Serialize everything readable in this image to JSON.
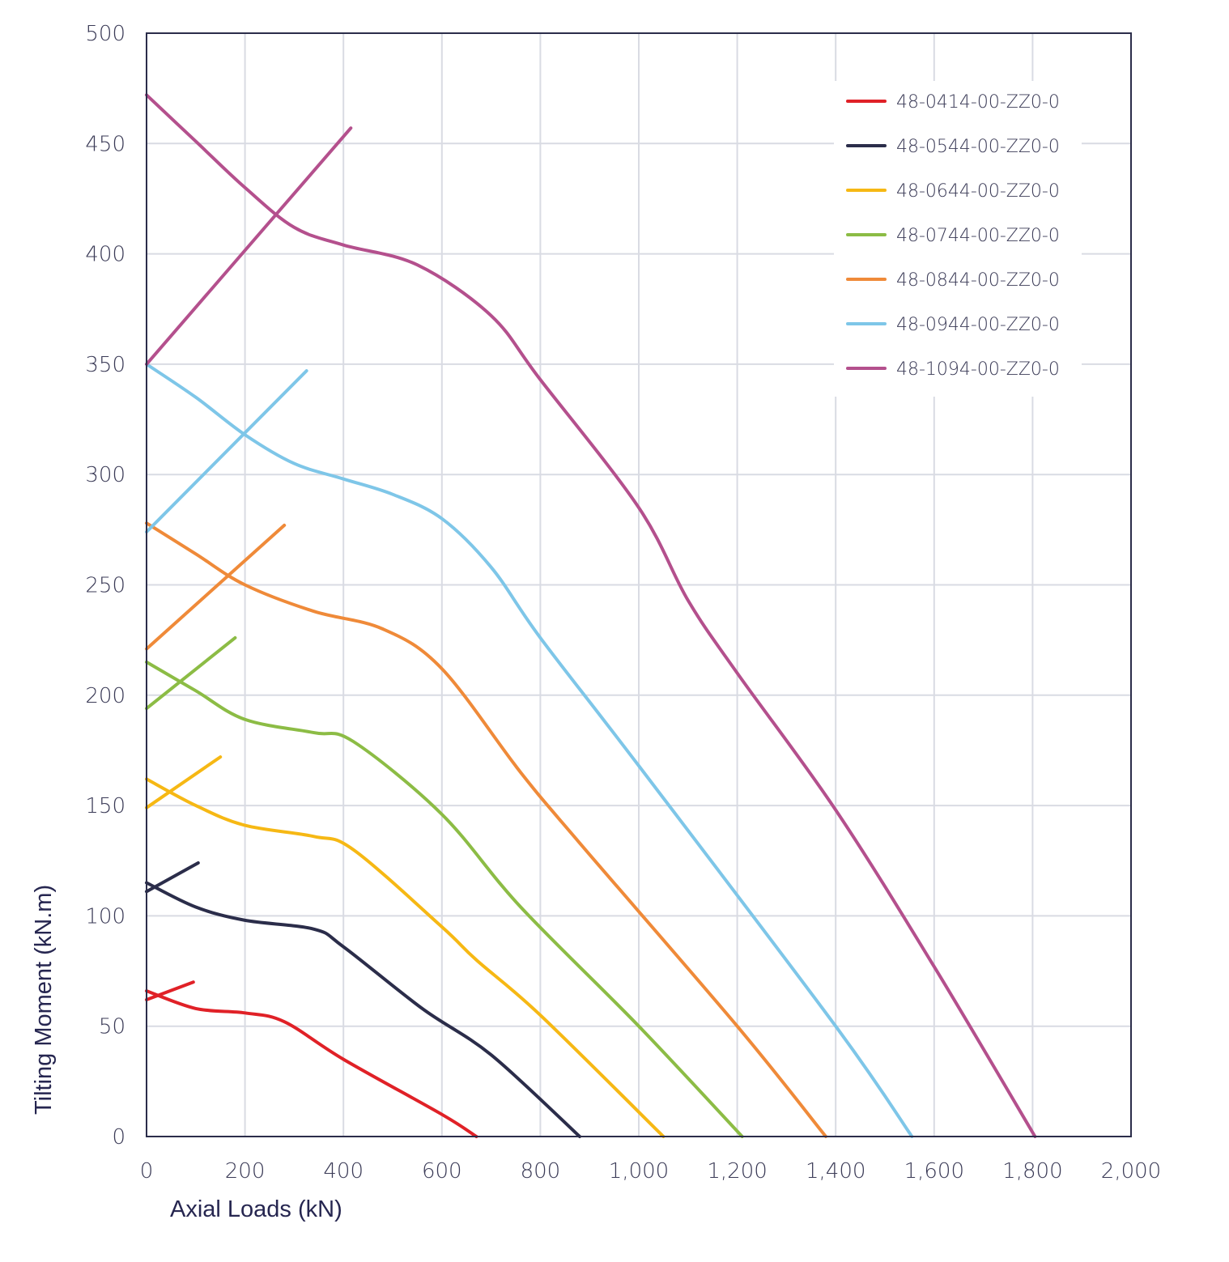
{
  "chart_data": {
    "type": "line",
    "title": "",
    "xlabel": "Axial Loads (kN)",
    "ylabel": "Tilting Moment (kN.m)",
    "xlim": [
      0,
      2000
    ],
    "ylim": [
      0,
      500
    ],
    "xticks": [
      0,
      200,
      400,
      600,
      800,
      1000,
      1200,
      1400,
      1600,
      1800,
      2000
    ],
    "xtick_labels": [
      "0",
      "200",
      "400",
      "600",
      "800",
      "1,000",
      "1,200",
      "1,400",
      "1,600",
      "1,800",
      "2,000"
    ],
    "yticks": [
      0,
      50,
      100,
      150,
      200,
      250,
      300,
      350,
      400,
      450,
      500
    ],
    "ytick_labels": [
      "0",
      "50",
      "100",
      "150",
      "200",
      "250",
      "300",
      "350",
      "400",
      "450",
      "500"
    ],
    "grid": true,
    "legend_position": "top-right",
    "series": [
      {
        "name": "48-0414-00-ZZ0-0",
        "color": "#e02127",
        "x": [
          0,
          100,
          200,
          280,
          400,
          600,
          670
        ],
        "y": [
          66,
          58,
          56,
          52,
          35,
          10,
          0
        ],
        "secondary_x": [
          0,
          95
        ],
        "secondary_y": [
          62,
          70
        ]
      },
      {
        "name": "48-0544-00-ZZ0-0",
        "color": "#2b2d4a",
        "x": [
          0,
          100,
          200,
          340,
          400,
          560,
          700,
          880
        ],
        "y": [
          115,
          104,
          98,
          94,
          86,
          58,
          37,
          0
        ],
        "secondary_x": [
          0,
          105
        ],
        "secondary_y": [
          111,
          124
        ]
      },
      {
        "name": "48-0644-00-ZZ0-0",
        "color": "#f6b814",
        "x": [
          0,
          100,
          200,
          340,
          420,
          600,
          670,
          800,
          1050
        ],
        "y": [
          162,
          150,
          141,
          136,
          130,
          95,
          80,
          55,
          0
        ],
        "secondary_x": [
          0,
          150
        ],
        "secondary_y": [
          149,
          172
        ]
      },
      {
        "name": "48-0744-00-ZZ0-0",
        "color": "#8cbc45",
        "x": [
          0,
          100,
          200,
          340,
          420,
          600,
          760,
          1000,
          1210
        ],
        "y": [
          215,
          202,
          189,
          183,
          179,
          146,
          104,
          50,
          0
        ],
        "secondary_x": [
          0,
          180
        ],
        "secondary_y": [
          194,
          226
        ]
      },
      {
        "name": "48-0844-00-ZZ0-0",
        "color": "#ef8a39",
        "x": [
          0,
          100,
          200,
          340,
          480,
          600,
          760,
          880,
          1200,
          1380
        ],
        "y": [
          278,
          264,
          250,
          238,
          230,
          212,
          165,
          133,
          50,
          0
        ],
        "secondary_x": [
          0,
          280
        ],
        "secondary_y": [
          221,
          277
        ]
      },
      {
        "name": "48-0944-00-ZZ0-0",
        "color": "#7ec6e8",
        "x": [
          0,
          100,
          200,
          300,
          400,
          500,
          600,
          700,
          800,
          1000,
          1400,
          1555
        ],
        "y": [
          350,
          335,
          318,
          305,
          298,
          291,
          280,
          258,
          226,
          168,
          50,
          0
        ],
        "secondary_x": [
          0,
          325
        ],
        "secondary_y": [
          274,
          347
        ]
      },
      {
        "name": "48-1094-00-ZZ0-0",
        "color": "#b4508d",
        "x": [
          0,
          100,
          200,
          300,
          400,
          550,
          700,
          800,
          1000,
          1100,
          1200,
          1400,
          1600,
          1805
        ],
        "y": [
          472,
          451,
          430,
          412,
          404,
          395,
          372,
          343,
          285,
          243,
          210,
          148,
          77,
          0
        ],
        "secondary_x": [
          0,
          415
        ],
        "secondary_y": [
          350,
          457
        ]
      }
    ]
  }
}
